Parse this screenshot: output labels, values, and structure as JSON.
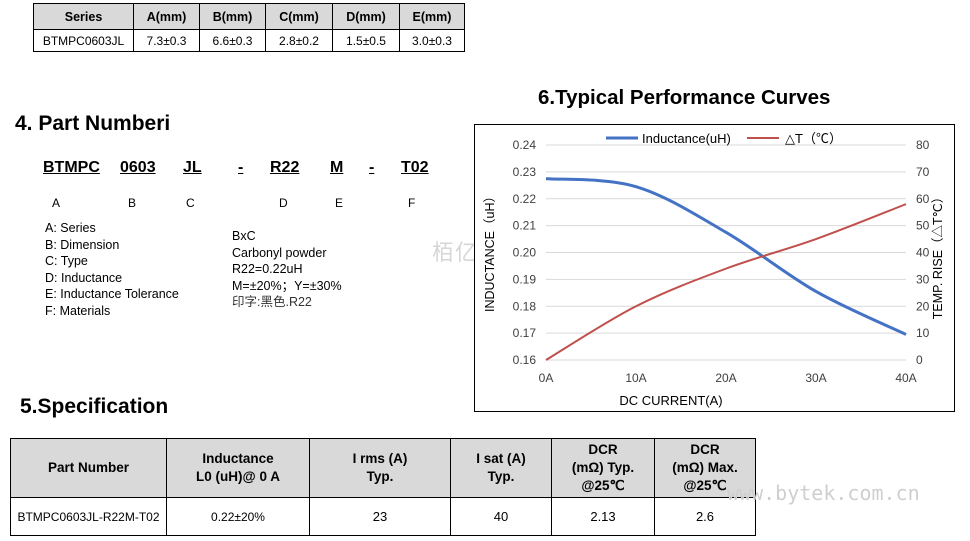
{
  "dimensions_table": {
    "headers": [
      "Series",
      "A(mm)",
      "B(mm)",
      "C(mm)",
      "D(mm)",
      "E(mm)"
    ],
    "row": [
      "BTMPC0603JL",
      "7.3±0.3",
      "6.6±0.3",
      "2.8±0.2",
      "1.5±0.5",
      "3.0±0.3"
    ]
  },
  "part_number": {
    "heading": "4. Part Numberi",
    "parts": [
      "BTMPC",
      "0603",
      "JL",
      "-",
      "R22",
      "M",
      "-",
      "T02"
    ],
    "letters": [
      "A",
      "B",
      "C",
      "D",
      "E",
      "F"
    ],
    "legend": [
      "A: Series",
      "B: Dimension",
      "C: Type",
      "D: Inductance",
      "E: Inductance Tolerance",
      "F: Materials"
    ],
    "values": [
      "BxC",
      "Carbonyl powder",
      "R22=0.22uH",
      "M=±20%；Y=±30%",
      "印字:黑色.R22"
    ]
  },
  "watermarks": {
    "cn": "栢亿科技",
    "url": "www.bytek.com.cn"
  },
  "chart": {
    "heading": "6.Typical Performance Curves"
  },
  "chart_data": {
    "type": "line",
    "x": [
      0,
      10,
      20,
      30,
      40
    ],
    "x_tick_labels": [
      "0A",
      "10A",
      "20A",
      "30A",
      "40A"
    ],
    "xlabel": "DC  CURRENT(A)",
    "ylabel": "INDUCTANCE（uH）",
    "y2label": "TEMP. RISE（△T℃）",
    "ylim": [
      0.16,
      0.24
    ],
    "y_ticks": [
      0.16,
      0.17,
      0.18,
      0.19,
      0.2,
      0.21,
      0.22,
      0.23,
      0.24
    ],
    "y2lim": [
      0,
      80
    ],
    "y2_ticks": [
      0,
      10,
      20,
      30,
      40,
      50,
      60,
      70,
      80
    ],
    "legend_placement": "top",
    "series": [
      {
        "name": "Inductance(uH)",
        "axis": "left",
        "color": "#4472c4",
        "values": [
          0.2275,
          0.2245,
          0.2075,
          0.1855,
          0.1695
        ]
      },
      {
        "name": "△T（℃）",
        "axis": "right",
        "color": "#c0504d",
        "values": [
          0,
          20,
          34,
          45,
          58
        ]
      }
    ]
  },
  "specification": {
    "heading": "5.Specification",
    "headers": [
      [
        "Part Number"
      ],
      [
        "Inductance",
        "L0 (uH)@ 0 A"
      ],
      [
        "I rms (A)",
        "Typ."
      ],
      [
        "I sat (A)",
        "Typ."
      ],
      [
        "DCR",
        "(mΩ) Typ.",
        "@25℃"
      ],
      [
        "DCR",
        "(mΩ) Max.",
        "@25℃"
      ]
    ],
    "row": [
      "BTMPC0603JL-R22M-T02",
      "0.22±20%",
      "23",
      "40",
      "2.13",
      "2.6"
    ]
  }
}
